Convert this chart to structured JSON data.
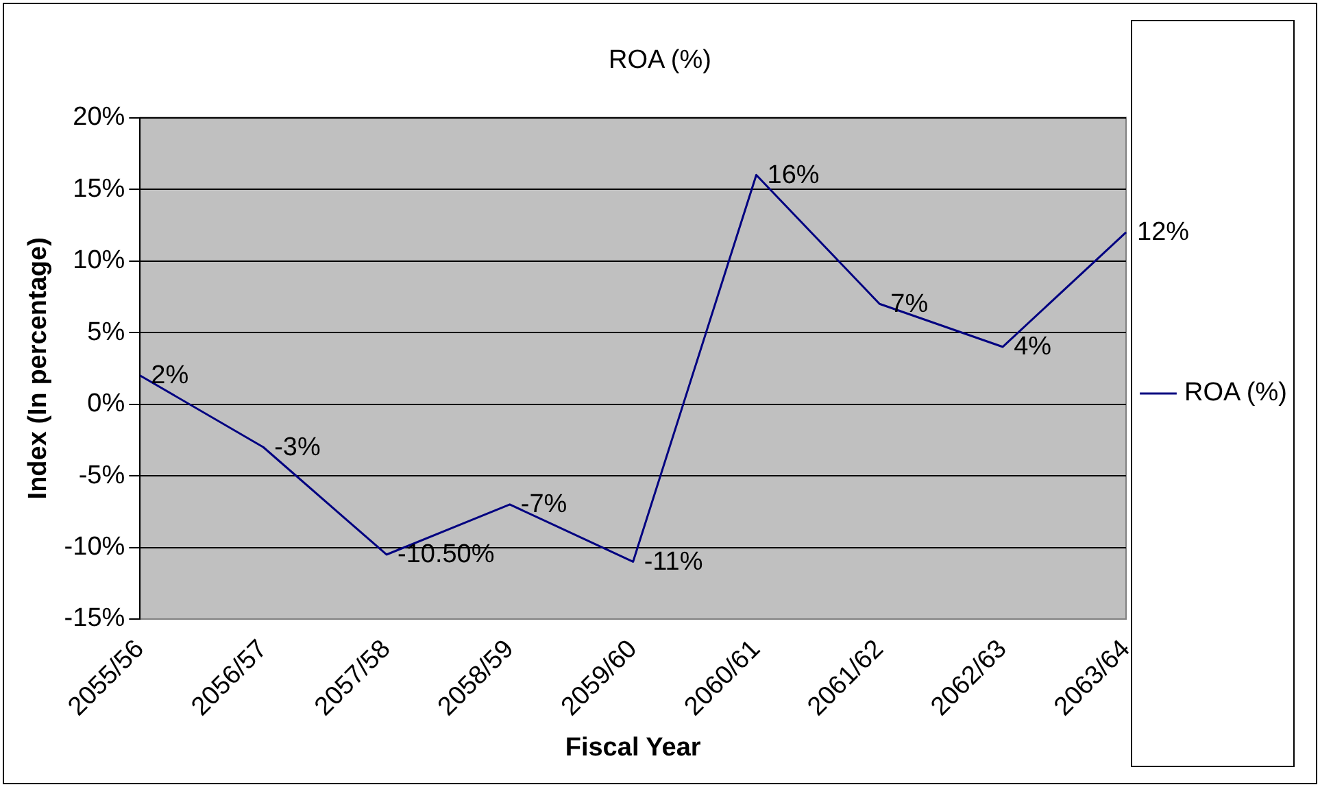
{
  "chart_data": {
    "type": "line",
    "title": "ROA (%)",
    "xlabel": "Fiscal Year",
    "ylabel": "Index (In percentage)",
    "categories": [
      "2055/56",
      "2056/57",
      "2057/58",
      "2058/59",
      "2059/60",
      "2060/61",
      "2061/62",
      "2062/63",
      "2063/64"
    ],
    "series": [
      {
        "name": "ROA (%)",
        "color": "#000080",
        "values": [
          2,
          -3,
          -10.5,
          -7,
          -11,
          16,
          7,
          4,
          12
        ],
        "value_labels": [
          "2%",
          "-3%",
          "-10.50%",
          "-7%",
          "-11%",
          "16%",
          "7%",
          "4%",
          "12%"
        ]
      }
    ],
    "ylim": [
      -15,
      20
    ],
    "yticks": [
      {
        "value": -15,
        "label": "-15%"
      },
      {
        "value": -10,
        "label": "-10%"
      },
      {
        "value": -5,
        "label": "-5%"
      },
      {
        "value": 0,
        "label": "0%"
      },
      {
        "value": 5,
        "label": "5%"
      },
      {
        "value": 10,
        "label": "10%"
      },
      {
        "value": 15,
        "label": "15%"
      },
      {
        "value": 20,
        "label": "20%"
      }
    ],
    "grid": "y",
    "legend": "right",
    "marker": "none",
    "line_style": "solid"
  }
}
